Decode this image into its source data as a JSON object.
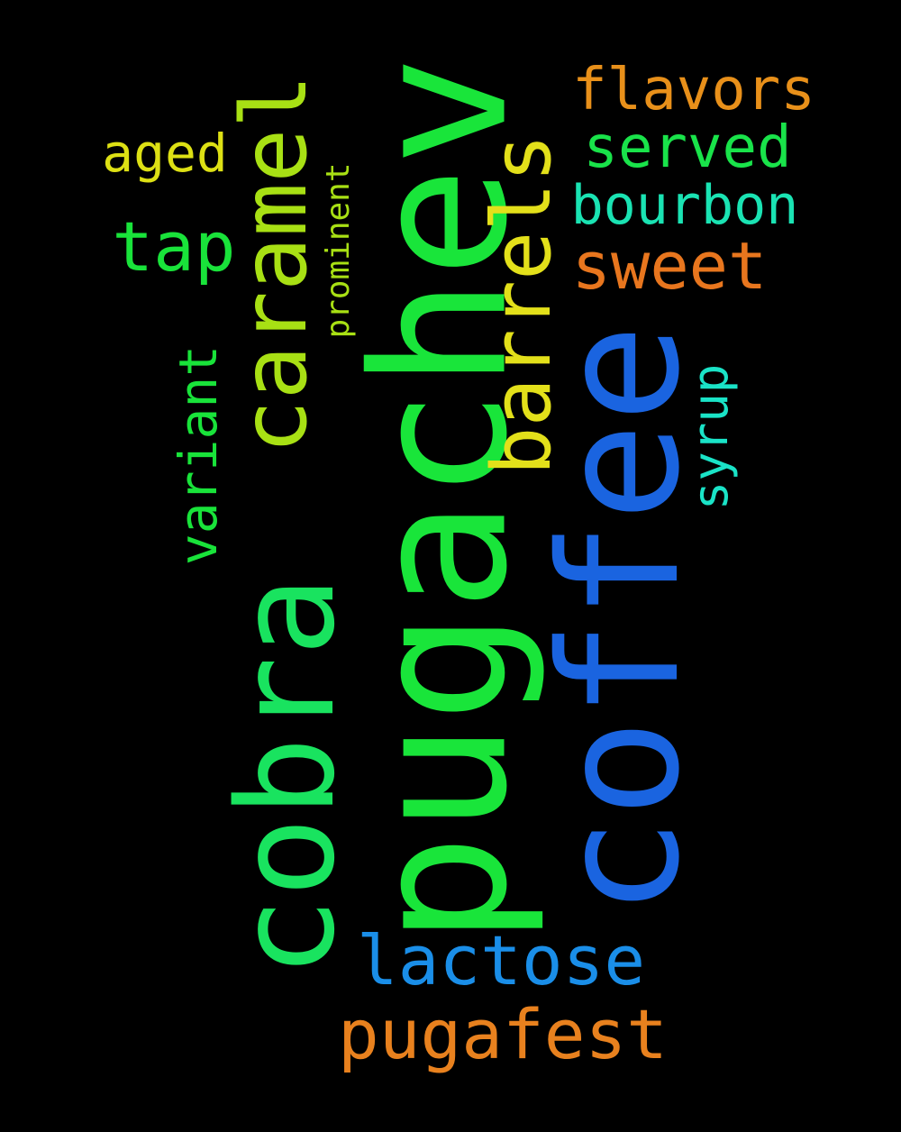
{
  "words": {
    "pugachev": {
      "text": "pugachev",
      "color": "#19e53a"
    },
    "coffee": {
      "text": "coffee",
      "color": "#1a64e0"
    },
    "cobra": {
      "text": "cobra",
      "color": "#19e35f"
    },
    "caramel": {
      "text": "caramel",
      "color": "#a8e014"
    },
    "barrels": {
      "text": "barrels",
      "color": "#e3e01a"
    },
    "lactose": {
      "text": "lactose",
      "color": "#1a8ee8"
    },
    "pugafest": {
      "text": "pugafest",
      "color": "#e8811e"
    },
    "flavors": {
      "text": "flavors",
      "color": "#e8901a"
    },
    "served": {
      "text": "served",
      "color": "#19e34a"
    },
    "bourbon": {
      "text": "bourbon",
      "color": "#1ae3b3"
    },
    "sweet": {
      "text": "sweet",
      "color": "#e8761e"
    },
    "aged": {
      "text": "aged",
      "color": "#dde014"
    },
    "tap": {
      "text": "tap",
      "color": "#19e33a"
    },
    "variant": {
      "text": "variant",
      "color": "#19e33a"
    },
    "prominent": {
      "text": "prominent",
      "color": "#a8e014"
    },
    "syrup": {
      "text": "syrup",
      "color": "#1ae3c7"
    }
  }
}
